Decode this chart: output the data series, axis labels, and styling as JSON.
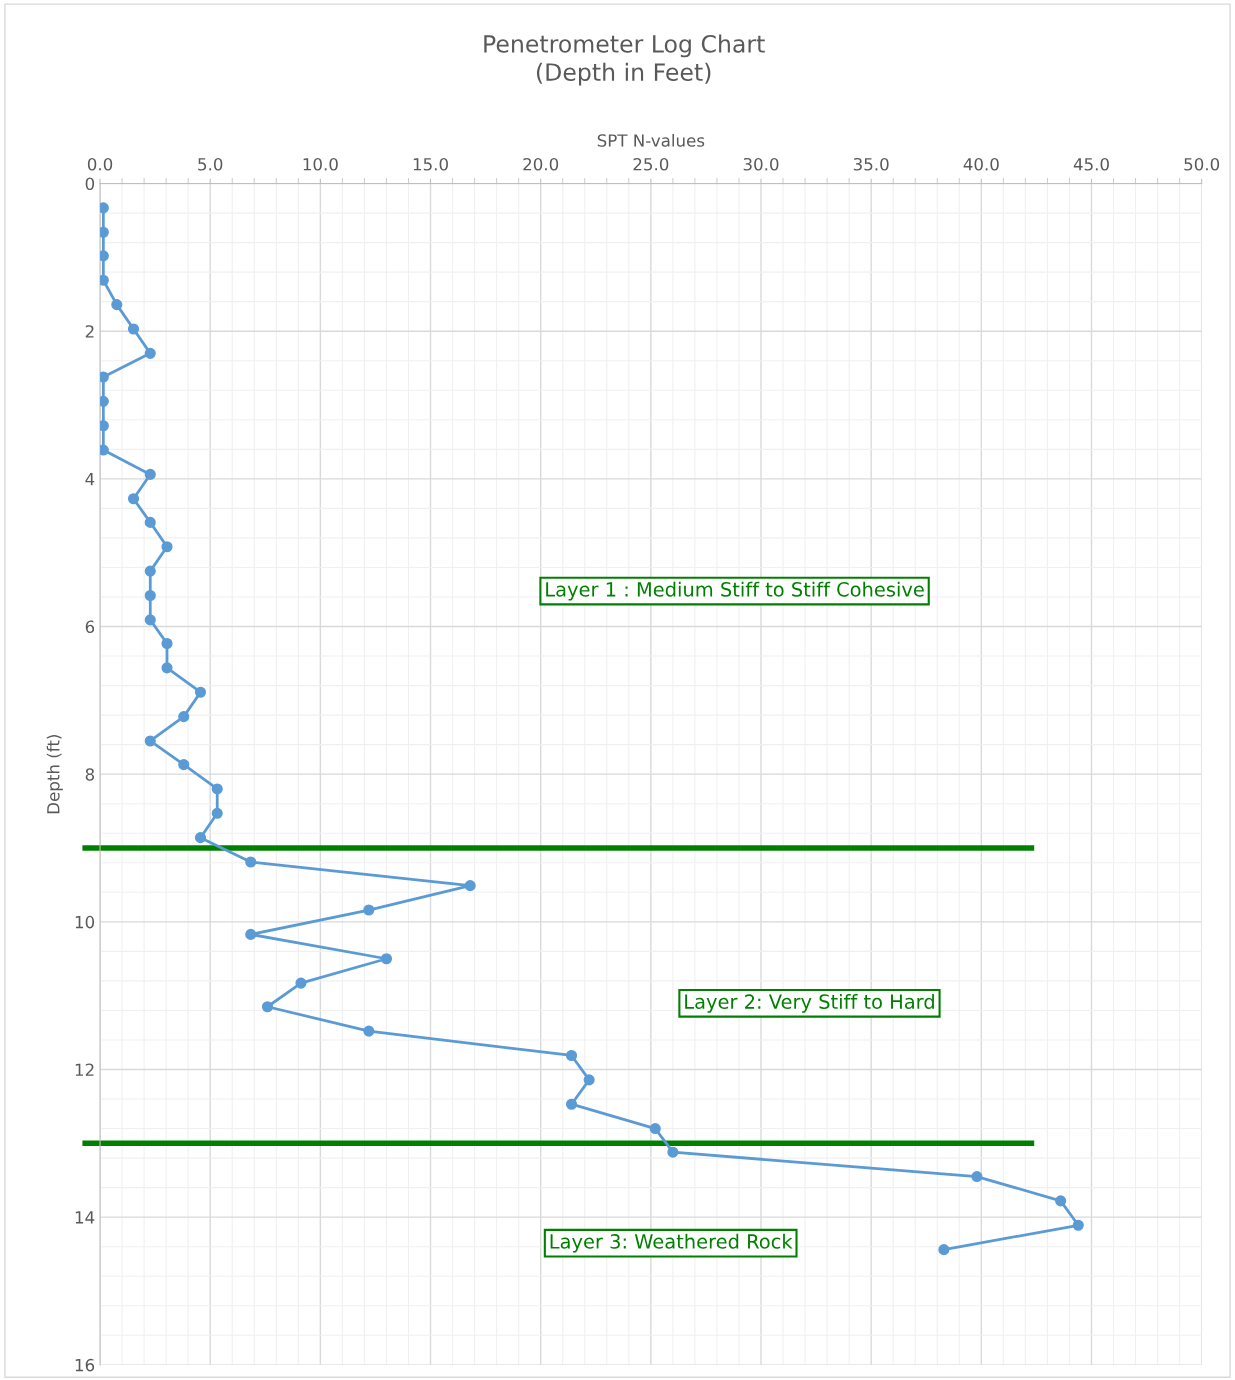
{
  "chart_data": {
    "type": "line",
    "title": "Penetrometer Log Chart\n(Depth in Feet)",
    "xlabel": "SPT N-values",
    "ylabel": "Depth (ft)",
    "series": [
      {
        "color": "#5b9bd5",
        "x": [
          0.15,
          0.15,
          0.15,
          0.15,
          0.76,
          1.52,
          2.28,
          0.15,
          0.15,
          0.15,
          0.15,
          2.28,
          1.52,
          2.28,
          3.04,
          2.28,
          2.28,
          2.28,
          3.04,
          3.04,
          4.56,
          3.8,
          2.28,
          3.8,
          5.32,
          5.32,
          4.56,
          6.84,
          16.8,
          12.2,
          6.84,
          13.0,
          9.12,
          7.6,
          12.2,
          21.4,
          22.2,
          21.4,
          25.2,
          26.0,
          39.8,
          43.6,
          44.4,
          38.3
        ],
        "values": [
          0.33,
          0.66,
          0.98,
          1.31,
          1.64,
          1.97,
          2.3,
          2.62,
          2.95,
          3.28,
          3.61,
          3.94,
          4.27,
          4.59,
          4.92,
          5.25,
          5.58,
          5.91,
          6.23,
          6.56,
          6.89,
          7.22,
          7.55,
          7.87,
          8.2,
          8.53,
          8.86,
          9.19,
          9.51,
          9.84,
          10.17,
          10.5,
          10.83,
          11.15,
          11.48,
          11.81,
          12.14,
          12.47,
          12.8,
          13.12,
          13.45,
          13.78,
          14.11,
          14.44
        ]
      }
    ],
    "xlim": [
      0,
      50
    ],
    "xticks": [
      {
        "value": 0,
        "label": "0.0"
      },
      {
        "value": 5,
        "label": "5.0"
      },
      {
        "value": 10,
        "label": "10.0"
      },
      {
        "value": 15,
        "label": "15.0"
      },
      {
        "value": 20,
        "label": "20.0"
      },
      {
        "value": 25,
        "label": "25.0"
      },
      {
        "value": 30,
        "label": "30.0"
      },
      {
        "value": 35,
        "label": "35.0"
      },
      {
        "value": 40,
        "label": "40.0"
      },
      {
        "value": 45,
        "label": "45.0"
      },
      {
        "value": 50,
        "label": "50.0"
      }
    ],
    "ylim": [
      16,
      0
    ],
    "yticks": [
      0,
      2,
      4,
      6,
      8,
      10,
      12,
      14,
      16
    ],
    "ref_lines": [
      {
        "axis": "y",
        "value": 9,
        "color": "#008000"
      },
      {
        "axis": "y",
        "value": 13,
        "color": "#008000"
      }
    ],
    "annotations": [
      "Layer 1 : Medium Stiff to Stiff Cohesive",
      "Layer 2: Very Stiff to Hard",
      "Layer 3: Weathered Rock"
    ],
    "grid": true,
    "marker": "circle",
    "line_style": "solid",
    "legend": false
  }
}
